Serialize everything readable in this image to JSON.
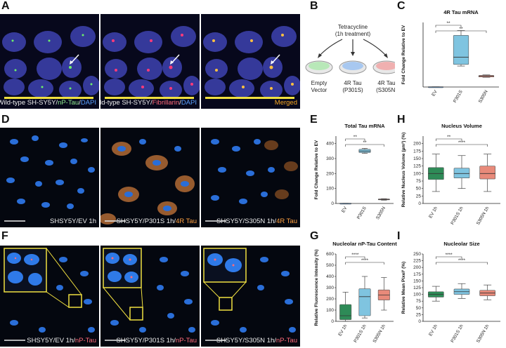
{
  "panels": {
    "A": "A",
    "B": "B",
    "C": "C",
    "D": "D",
    "E": "E",
    "F": "F",
    "G": "G",
    "H": "H",
    "I": "I"
  },
  "captions": {
    "a1_prefix": "Wild-type SH-SY5Y/",
    "a1_marker": "nP-Tau",
    "a1_sep": "/",
    "a1_dapi": "DAPI",
    "a2_prefix": "Wild-type SH-SY5Y/",
    "a2_marker": "Fibrillarin",
    "a2_sep": "/",
    "a2_dapi": "DAPI",
    "a3": "Merged",
    "d1": "SHSY5Y/EV 1h",
    "d2_prefix": "SHSY5Y/P301S 1h/",
    "d2_marker": "4R Tau",
    "d3_prefix": "SHSY5Y/S305N 1h/",
    "d3_marker": "4R Tau",
    "f1_prefix": "SHSY5Y/EV 1h/",
    "f1_marker": "nP-Tau",
    "f2_prefix": "SHSY5Y/P301S 1h/",
    "f2_marker": "nP-Tau",
    "f3_prefix": "SHSY5Y/S305N 1h/",
    "f3_marker": "nP-Tau"
  },
  "diagram": {
    "treatment_line1": "Tetracycline",
    "treatment_line2": "(1h treatment)",
    "dishes": [
      {
        "line1": "Empty",
        "line2": "Vector",
        "line3": "",
        "color": "#7fd07f"
      },
      {
        "line1": "4R Tau",
        "line2": "(P301S)",
        "line3": "",
        "color": "#5aa0e0"
      },
      {
        "line1": "4R Tau",
        "line2": "(S305N)",
        "line3": "",
        "color": "#e06060"
      }
    ]
  },
  "chart_data": [
    {
      "panel": "C",
      "type": "box",
      "title": "4R Tau mRNA",
      "ylabel": "Fold Change Relative to EV",
      "categories": [
        "EV",
        "P301S",
        "S305N"
      ],
      "ylim": [
        0,
        400
      ],
      "yticks": [
        0,
        100,
        200,
        300,
        400
      ],
      "show_yticks": false,
      "colors": [
        "#5aa0e0",
        "#e28a6e"
      ],
      "boxes": [
        {
          "min": 1,
          "q1": 1,
          "med": 1,
          "q3": 1,
          "max": 1,
          "color": "#4d8fd6"
        },
        {
          "min": 130,
          "q1": 140,
          "med": 185,
          "q3": 320,
          "max": 350,
          "color": "#7fc4e0"
        },
        {
          "min": 60,
          "q1": 62,
          "med": 68,
          "q3": 72,
          "max": 75,
          "color": "#e88a7a"
        }
      ],
      "sig": [
        {
          "a": 0,
          "b": 1,
          "label": "**"
        },
        {
          "a": 0,
          "b": 2,
          "label": "**"
        }
      ]
    },
    {
      "panel": "E",
      "type": "box",
      "title": "Total Tau mRNA",
      "ylabel": "Fold Change Relative to EV",
      "categories": [
        "EV",
        "P301S",
        "S305N"
      ],
      "ylim": [
        0,
        450
      ],
      "yticks": [
        0,
        100,
        200,
        300,
        400
      ],
      "show_yticks": true,
      "boxes": [
        {
          "min": 1,
          "q1": 1,
          "med": 1,
          "q3": 1,
          "max": 1,
          "color": "#4d8fd6"
        },
        {
          "min": 335,
          "q1": 340,
          "med": 350,
          "q3": 362,
          "max": 368,
          "color": "#7fc4e0"
        },
        {
          "min": 22,
          "q1": 24,
          "med": 27,
          "q3": 30,
          "max": 32,
          "color": "#e88a7a"
        }
      ],
      "sig": [
        {
          "a": 0,
          "b": 1,
          "label": "**"
        },
        {
          "a": 0,
          "b": 2,
          "label": "**"
        }
      ]
    },
    {
      "panel": "H",
      "type": "box",
      "title": "Nucleus Volume",
      "ylabel": "Relative Nucleus Volume (µm³) (%)",
      "categories": [
        "EV 1h",
        "P301S 1h",
        "S305N 1h"
      ],
      "ylim": [
        0,
        225
      ],
      "yticks": [
        0,
        25,
        50,
        75,
        100,
        125,
        150,
        175,
        200
      ],
      "show_yticks": true,
      "boxes": [
        {
          "min": 40,
          "q1": 80,
          "med": 100,
          "q3": 120,
          "max": 165,
          "color": "#2e8b57"
        },
        {
          "min": 50,
          "q1": 85,
          "med": 100,
          "q3": 118,
          "max": 160,
          "color": "#7fc4e0"
        },
        {
          "min": 40,
          "q1": 82,
          "med": 100,
          "q3": 125,
          "max": 165,
          "color": "#e88a7a"
        }
      ],
      "sig": [
        {
          "a": 0,
          "b": 1,
          "label": "**"
        },
        {
          "a": 0,
          "b": 2,
          "label": "****"
        }
      ]
    },
    {
      "panel": "G",
      "type": "box",
      "title": "Nucleolar nP-Tau Content",
      "ylabel": "Relative Fluorescence Intensity (%)",
      "categories": [
        "EV 1h",
        "P301S 1h",
        "S305N 1h"
      ],
      "ylim": [
        0,
        600
      ],
      "yticks": [
        0,
        100,
        200,
        300,
        400,
        500,
        600
      ],
      "show_yticks": true,
      "boxes": [
        {
          "min": 0,
          "q1": 15,
          "med": 50,
          "q3": 150,
          "max": 260,
          "color": "#2e8b57"
        },
        {
          "min": 30,
          "q1": 50,
          "med": 220,
          "q3": 290,
          "max": 400,
          "color": "#7fc4e0"
        },
        {
          "min": 100,
          "q1": 190,
          "med": 235,
          "q3": 280,
          "max": 390,
          "color": "#e88a7a"
        }
      ],
      "sig": [
        {
          "a": 0,
          "b": 1,
          "label": "****"
        },
        {
          "a": 0,
          "b": 2,
          "label": "****"
        }
      ]
    },
    {
      "panel": "I",
      "type": "box",
      "title": "Nucleolar Size",
      "ylabel": "Relative Mean Pixel² (%)",
      "categories": [
        "EV 1h",
        "P301S 1h",
        "S305N 1h"
      ],
      "ylim": [
        0,
        250
      ],
      "yticks": [
        0,
        25,
        50,
        75,
        100,
        125,
        150,
        175,
        200,
        225,
        250
      ],
      "show_yticks": true,
      "boxes": [
        {
          "min": 75,
          "q1": 90,
          "med": 100,
          "q3": 110,
          "max": 130,
          "color": "#2e8b57"
        },
        {
          "min": 85,
          "q1": 100,
          "med": 110,
          "q3": 120,
          "max": 140,
          "color": "#7fc4e0"
        },
        {
          "min": 80,
          "q1": 95,
          "med": 105,
          "q3": 115,
          "max": 135,
          "color": "#e88a7a"
        }
      ],
      "sig": [
        {
          "a": 0,
          "b": 1,
          "label": "****"
        },
        {
          "a": 0,
          "b": 2,
          "label": "****"
        }
      ]
    }
  ]
}
